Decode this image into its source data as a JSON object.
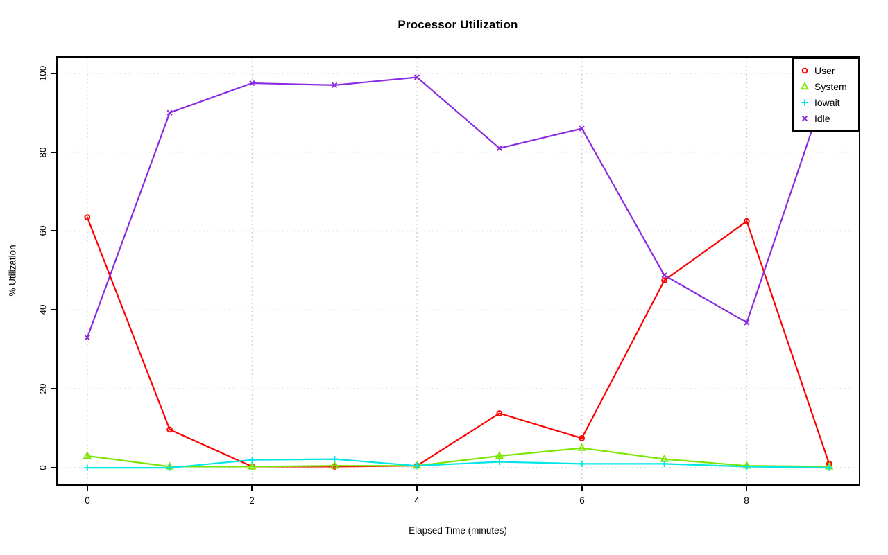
{
  "title": "Processor Utilization",
  "chart_data": {
    "type": "line",
    "title": "Processor Utilization",
    "xlabel": "Elapsed Time (minutes)",
    "ylabel": "% Utilization",
    "x": [
      0,
      1,
      2,
      3,
      4,
      5,
      6,
      7,
      8,
      9
    ],
    "series": [
      {
        "name": "User",
        "marker": "circle",
        "color": "#ff0000",
        "values": [
          63.5,
          9.7,
          0.3,
          0.3,
          0.5,
          13.8,
          7.5,
          47.5,
          62.5,
          1.0
        ]
      },
      {
        "name": "System",
        "marker": "triangle",
        "color": "#7ce600",
        "values": [
          3.0,
          0.3,
          0.3,
          0.5,
          0.5,
          3.0,
          5.0,
          2.2,
          0.5,
          0.3
        ]
      },
      {
        "name": "Iowait",
        "marker": "plus",
        "color": "#00e5e5",
        "values": [
          0.0,
          0.0,
          2.0,
          2.2,
          0.5,
          1.5,
          1.0,
          1.0,
          0.3,
          0.0
        ]
      },
      {
        "name": "Idle",
        "marker": "x",
        "color": "#8a2be2",
        "values": [
          33.0,
          90.0,
          97.5,
          97.0,
          99.0,
          81.0,
          86.0,
          48.8,
          36.8,
          98.5
        ]
      }
    ],
    "x_ticks": [
      0,
      2,
      4,
      6,
      8
    ],
    "y_ticks": [
      0,
      20,
      40,
      60,
      80,
      100
    ],
    "xlim": [
      -0.36,
      9.36
    ],
    "ylim": [
      -4.2,
      104.0
    ],
    "grid": true,
    "legend_position": "top-right",
    "legend": [
      "User",
      "System",
      "Iowait",
      "Idle"
    ]
  },
  "colors": {
    "grid": "#c8c8c8",
    "axis": "#000000",
    "background": "#ffffff"
  }
}
